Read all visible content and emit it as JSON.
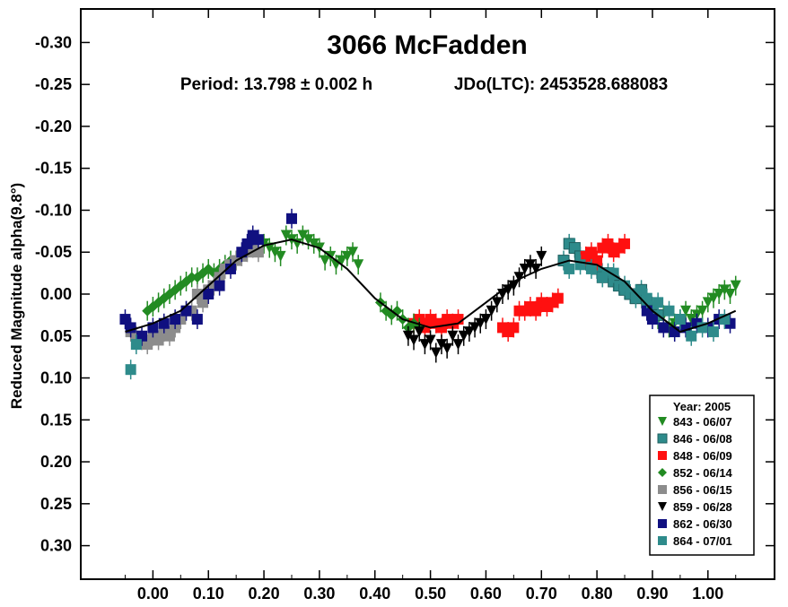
{
  "chart_data": {
    "type": "scatter",
    "title": "3066 McFadden",
    "subtitle_period": "Period: 13.798 ± 0.002 h",
    "subtitle_epoch": "JDo(LTC): 2453528.688083",
    "ylabel": "Reduced Magnitude alpha(9.8°)",
    "xlabel": "",
    "xlim": [
      -0.13,
      1.12
    ],
    "ylim": [
      -0.34,
      0.34
    ],
    "y_inverted": true,
    "grid": false,
    "legend_position": "bottom-right",
    "legend_title": "Year: 2005",
    "x_ticks": [
      "0.00",
      "0.10",
      "0.20",
      "0.30",
      "0.40",
      "0.50",
      "0.60",
      "0.70",
      "0.80",
      "0.90",
      "1.00"
    ],
    "y_ticks": [
      "-0.30",
      "-0.25",
      "-0.20",
      "-0.15",
      "-0.10",
      "-0.05",
      "0.00",
      "0.05",
      "0.10",
      "0.15",
      "0.20",
      "0.25",
      "0.30"
    ],
    "fit_curve": {
      "x": [
        -0.05,
        0.0,
        0.05,
        0.1,
        0.15,
        0.2,
        0.25,
        0.3,
        0.35,
        0.4,
        0.45,
        0.5,
        0.55,
        0.6,
        0.65,
        0.7,
        0.75,
        0.8,
        0.85,
        0.9,
        0.95,
        1.0,
        1.05
      ],
      "y": [
        0.045,
        0.035,
        0.02,
        -0.01,
        -0.04,
        -0.058,
        -0.065,
        -0.055,
        -0.03,
        0.005,
        0.03,
        0.04,
        0.035,
        0.01,
        -0.015,
        -0.03,
        -0.04,
        -0.035,
        -0.015,
        0.02,
        0.045,
        0.035,
        0.02
      ]
    },
    "series": [
      {
        "name": "843 - 06/07",
        "marker": "triangle-down",
        "color": "#228B22",
        "x": [
          0.24,
          0.25,
          0.26,
          0.27,
          0.28,
          0.29,
          0.3,
          0.31,
          0.32,
          0.33,
          0.34,
          0.35,
          0.36,
          0.37,
          0.2,
          0.21,
          0.22,
          0.23,
          0.91,
          0.92,
          0.93,
          0.94,
          0.95,
          0.96,
          0.97,
          0.98,
          0.99,
          1.0,
          1.01,
          1.02,
          1.03,
          1.04,
          1.05
        ],
        "y": [
          -0.07,
          -0.065,
          -0.06,
          -0.07,
          -0.065,
          -0.06,
          -0.055,
          -0.04,
          -0.045,
          -0.035,
          -0.04,
          -0.045,
          -0.05,
          -0.035,
          -0.06,
          -0.055,
          -0.05,
          -0.045,
          0.03,
          0.025,
          0.04,
          0.035,
          0.03,
          0.02,
          0.03,
          0.025,
          0.02,
          0.01,
          0.005,
          0.0,
          -0.005,
          0.0,
          -0.01
        ]
      },
      {
        "name": "846 - 06/08",
        "marker": "square-light",
        "color": "#2E8B8B",
        "x": [
          0.75,
          0.76,
          0.77,
          0.78,
          0.79,
          0.8,
          0.81,
          0.82,
          0.83,
          0.84,
          0.85,
          0.86,
          0.87,
          0.88,
          0.89,
          0.9,
          0.91,
          0.74
        ],
        "y": [
          -0.06,
          -0.055,
          -0.045,
          -0.04,
          -0.035,
          -0.03,
          -0.02,
          -0.025,
          -0.015,
          -0.01,
          -0.005,
          0.0,
          0.005,
          -0.005,
          0.01,
          0.02,
          0.025,
          -0.04
        ]
      },
      {
        "name": "848 - 06/09",
        "marker": "square",
        "color": "#FF1010",
        "x": [
          0.47,
          0.48,
          0.49,
          0.5,
          0.51,
          0.52,
          0.53,
          0.54,
          0.55,
          0.63,
          0.64,
          0.65,
          0.66,
          0.67,
          0.68,
          0.69,
          0.7,
          0.71,
          0.72,
          0.73,
          0.78,
          0.79,
          0.8,
          0.81,
          0.82,
          0.83,
          0.84,
          0.85
        ],
        "y": [
          0.035,
          0.03,
          0.04,
          0.03,
          0.035,
          0.04,
          0.03,
          0.035,
          0.03,
          0.04,
          0.045,
          0.04,
          0.02,
          0.02,
          0.015,
          0.02,
          0.01,
          0.015,
          0.01,
          0.005,
          -0.045,
          -0.05,
          -0.04,
          -0.055,
          -0.06,
          -0.05,
          -0.055,
          -0.06
        ]
      },
      {
        "name": "852 - 06/14",
        "marker": "diamond",
        "color": "#228B22",
        "x": [
          -0.01,
          0.0,
          0.01,
          0.02,
          0.03,
          0.04,
          0.05,
          0.06,
          0.07,
          0.08,
          0.09,
          0.1,
          0.11,
          0.12,
          0.13,
          0.14,
          0.15,
          0.41,
          0.42,
          0.43,
          0.44,
          0.45,
          0.46,
          0.47,
          0.48
        ],
        "y": [
          0.02,
          0.015,
          0.01,
          0.005,
          0.0,
          -0.005,
          -0.01,
          -0.015,
          -0.02,
          -0.02,
          -0.025,
          -0.03,
          -0.025,
          -0.03,
          -0.035,
          -0.04,
          -0.04,
          0.01,
          0.02,
          0.025,
          0.02,
          0.03,
          0.04,
          0.035,
          0.04
        ]
      },
      {
        "name": "856 - 06/15",
        "marker": "square",
        "color": "#8C8C8C",
        "x": [
          -0.04,
          -0.03,
          -0.02,
          -0.01,
          0.0,
          0.01,
          0.02,
          0.03,
          0.04,
          0.05,
          0.06,
          0.07,
          0.08,
          0.09,
          0.1,
          0.11,
          0.12,
          0.13,
          0.14,
          0.15,
          0.16,
          0.17,
          0.18,
          0.19
        ],
        "y": [
          0.045,
          0.05,
          0.055,
          0.06,
          0.05,
          0.055,
          0.045,
          0.05,
          0.04,
          0.03,
          0.02,
          0.02,
          0.0,
          0.01,
          -0.005,
          -0.01,
          -0.02,
          -0.03,
          -0.035,
          -0.04,
          -0.045,
          -0.05,
          -0.055,
          -0.05
        ]
      },
      {
        "name": "859 - 06/28",
        "marker": "triangle-down",
        "color": "#000000",
        "x": [
          0.46,
          0.47,
          0.48,
          0.49,
          0.5,
          0.51,
          0.52,
          0.53,
          0.54,
          0.55,
          0.56,
          0.57,
          0.58,
          0.59,
          0.6,
          0.61,
          0.62,
          0.63,
          0.64,
          0.65,
          0.66,
          0.67,
          0.68,
          0.69,
          0.7
        ],
        "y": [
          0.05,
          0.055,
          0.045,
          0.06,
          0.055,
          0.07,
          0.06,
          0.065,
          0.05,
          0.06,
          0.05,
          0.045,
          0.04,
          0.035,
          0.03,
          0.02,
          0.01,
          0.0,
          -0.005,
          -0.01,
          -0.02,
          -0.03,
          -0.035,
          -0.03,
          -0.045
        ]
      },
      {
        "name": "862 - 06/30",
        "marker": "square",
        "color": "#101080",
        "x": [
          -0.05,
          -0.04,
          -0.02,
          0.0,
          0.02,
          0.04,
          0.06,
          0.08,
          0.1,
          0.12,
          0.14,
          0.16,
          0.17,
          0.18,
          0.19,
          0.25,
          0.89,
          0.9,
          0.92,
          0.94,
          0.96,
          0.98,
          1.0,
          1.02,
          1.04
        ],
        "y": [
          0.03,
          0.04,
          0.05,
          0.04,
          0.035,
          0.03,
          0.02,
          0.03,
          0.0,
          -0.01,
          -0.03,
          -0.05,
          -0.06,
          -0.07,
          -0.065,
          -0.09,
          0.02,
          0.03,
          0.04,
          0.045,
          0.04,
          0.035,
          0.04,
          0.03,
          0.035
        ]
      },
      {
        "name": "864 - 07/01",
        "marker": "square",
        "color": "#2E8B8B",
        "x": [
          -0.04,
          -0.03,
          0.75,
          0.77,
          0.79,
          0.81,
          0.83,
          0.85,
          0.87,
          0.89,
          0.91,
          0.93,
          0.95,
          0.97,
          0.99,
          1.01,
          1.03
        ],
        "y": [
          0.09,
          0.06,
          -0.03,
          -0.035,
          -0.03,
          -0.02,
          -0.025,
          -0.01,
          0.0,
          0.005,
          0.01,
          0.02,
          0.03,
          0.05,
          0.04,
          0.045,
          0.03
        ]
      }
    ]
  }
}
